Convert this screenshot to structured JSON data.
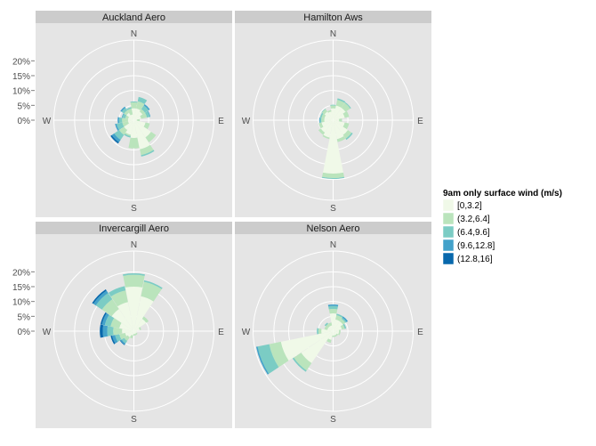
{
  "chart_data": {
    "type": "polar-bar",
    "legend": {
      "title": "9am only surface wind (m/s)",
      "entries": [
        "[0,3.2]",
        "(3.2,6.4]",
        "(6.4,9.6]",
        "(9.6,12.8]",
        "(12.8,16]"
      ],
      "colors": [
        "#f0f9e8",
        "#bae4bc",
        "#7bccc4",
        "#43a2ca",
        "#0868ac"
      ],
      "placement": "right"
    },
    "r_ticks": [
      "0%",
      "5%",
      "10%",
      "15%",
      "20%"
    ],
    "r_values": [
      0,
      5,
      10,
      15,
      20
    ],
    "r_max": 27,
    "compass": [
      "N",
      "E",
      "S",
      "W"
    ],
    "directions_deg": [
      0,
      22.5,
      45,
      67.5,
      90,
      112.5,
      135,
      157.5,
      180,
      202.5,
      225,
      247.5,
      270,
      292.5,
      315,
      337.5
    ],
    "facets": [
      {
        "title": "Auckland Aero",
        "stacks": [
          [
            4,
            2,
            0.3,
            0,
            0
          ],
          [
            4,
            2.5,
            1.5,
            0,
            0
          ],
          [
            3.5,
            1,
            1.5,
            0.5,
            0
          ],
          [
            2.5,
            2,
            1,
            0.2,
            0
          ],
          [
            1,
            1,
            0,
            0,
            0
          ],
          [
            4,
            1.5,
            0,
            0,
            0
          ],
          [
            7,
            2,
            0,
            0,
            0
          ],
          [
            10,
            2,
            0.5,
            0,
            0
          ],
          [
            6,
            3.5,
            0,
            0,
            0
          ],
          [
            5,
            0.5,
            0.5,
            0,
            0
          ],
          [
            4,
            2,
            2,
            1,
            0.5
          ],
          [
            2,
            2,
            2,
            0.5,
            0
          ],
          [
            2,
            2,
            1,
            0.5,
            0
          ],
          [
            2,
            1,
            1,
            0.2,
            0
          ],
          [
            3,
            1,
            1,
            0.5,
            0
          ],
          [
            2,
            2,
            0.5,
            0,
            0
          ]
        ]
      },
      {
        "title": "Hamilton Aws",
        "stacks": [
          [
            4,
            1,
            0.2,
            0,
            0
          ],
          [
            5,
            2,
            0.5,
            0,
            0
          ],
          [
            5,
            2,
            0.3,
            0,
            0
          ],
          [
            4,
            1.5,
            0,
            0,
            0
          ],
          [
            2,
            1,
            0,
            0,
            0
          ],
          [
            4,
            1.5,
            0,
            0,
            0
          ],
          [
            6,
            1.5,
            0.5,
            0,
            0
          ],
          [
            6.5,
            1,
            0,
            0,
            0
          ],
          [
            18,
            1.5,
            0.3,
            0,
            0
          ],
          [
            6,
            0.5,
            0,
            0,
            0
          ],
          [
            5,
            1,
            0,
            0,
            0
          ],
          [
            4,
            1,
            0,
            0,
            0
          ],
          [
            3,
            1,
            0.5,
            0.2,
            0
          ],
          [
            3,
            1,
            0.5,
            0,
            0
          ],
          [
            3.5,
            1,
            0.2,
            0,
            0
          ],
          [
            3,
            0.5,
            0,
            0,
            0
          ]
        ]
      },
      {
        "title": "Invercargill Aero",
        "stacks": [
          [
            15,
            4,
            0.5,
            0,
            0
          ],
          [
            12,
            5,
            0.5,
            0,
            0
          ],
          [
            5,
            1,
            0,
            0,
            0
          ],
          [
            2,
            0.5,
            0,
            0,
            0
          ],
          [
            1,
            0,
            0,
            0,
            0
          ],
          [
            1,
            0,
            0,
            0,
            0
          ],
          [
            1,
            0.5,
            0,
            0,
            0
          ],
          [
            1,
            0.5,
            0,
            0,
            0
          ],
          [
            1,
            0.5,
            0,
            0,
            0
          ],
          [
            1.5,
            1,
            0,
            0,
            0
          ],
          [
            2.5,
            1.5,
            1,
            0.5,
            0.2
          ],
          [
            3,
            2,
            1.5,
            1,
            0.5
          ],
          [
            4,
            3,
            2,
            1.5,
            1
          ],
          [
            5,
            3,
            2,
            1,
            0.5
          ],
          [
            9,
            4,
            2.5,
            1,
            0.5
          ],
          [
            10,
            4,
            1.5,
            0,
            0
          ]
        ]
      },
      {
        "title": "Nelson Aero",
        "stacks": [
          [
            6,
            1.5,
            1,
            0.5,
            0
          ],
          [
            4,
            1.5,
            0.5,
            0,
            0
          ],
          [
            4,
            1,
            0.5,
            0.5,
            0
          ],
          [
            3,
            1,
            0.5,
            0,
            0
          ],
          [
            2,
            0.5,
            0,
            0,
            0
          ],
          [
            2,
            0.5,
            0,
            0,
            0
          ],
          [
            1.5,
            0.5,
            0,
            0,
            0
          ],
          [
            1.5,
            0.5,
            0,
            0,
            0
          ],
          [
            1.5,
            0.5,
            0,
            0,
            0
          ],
          [
            3,
            1,
            0,
            0,
            0
          ],
          [
            13,
            3,
            0.5,
            0,
            0
          ],
          [
            18,
            4,
            4,
            0.5,
            0
          ],
          [
            4,
            1,
            0.5,
            0,
            0
          ],
          [
            2,
            1,
            0,
            0,
            0
          ],
          [
            2,
            1,
            0.5,
            0,
            0
          ],
          [
            2,
            1,
            0,
            0,
            0
          ]
        ]
      }
    ]
  }
}
